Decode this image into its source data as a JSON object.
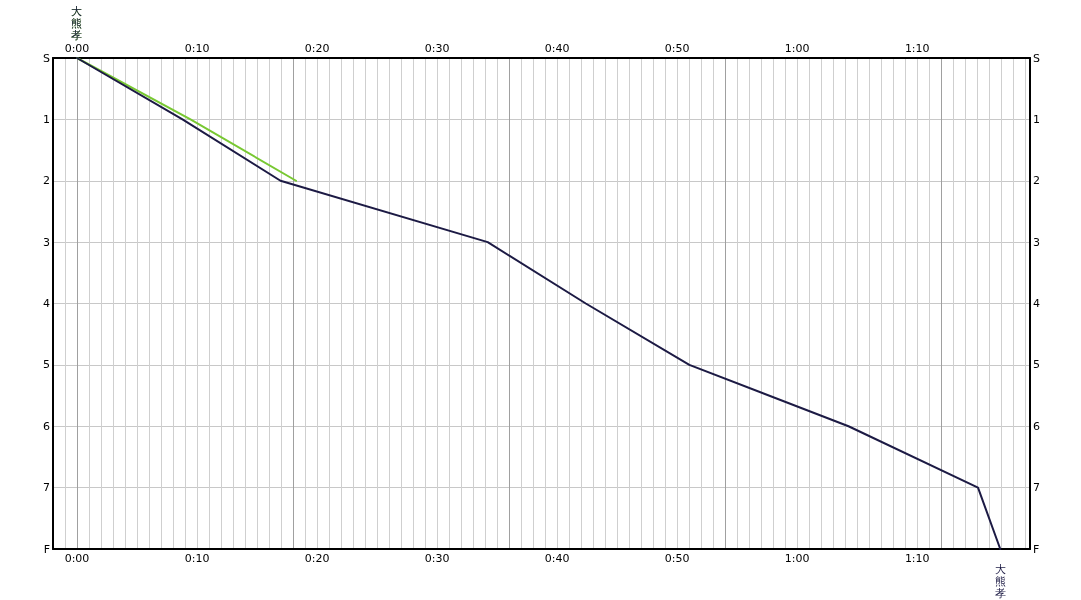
{
  "chart_data": {
    "type": "line",
    "xlim": [
      -0.0333,
      1.3233
    ],
    "xticks": [
      {
        "value": 0,
        "label": "0:00"
      },
      {
        "value": 0.1667,
        "label": "0:10"
      },
      {
        "value": 0.3333,
        "label": "0:20"
      },
      {
        "value": 0.5,
        "label": "0:30"
      },
      {
        "value": 0.6667,
        "label": "0:40"
      },
      {
        "value": 0.8333,
        "label": "0:50"
      },
      {
        "value": 1,
        "label": "1:00"
      },
      {
        "value": 1.1667,
        "label": "1:10"
      }
    ],
    "x2lim": [
      -0.0333,
      1.3233
    ],
    "x2ticks": [
      {
        "value": 0,
        "label": "0:00"
      },
      {
        "value": 0.1667,
        "label": "0:10"
      },
      {
        "value": 0.3333,
        "label": "0:20"
      },
      {
        "value": 0.5,
        "label": "0:30"
      },
      {
        "value": 0.6667,
        "label": "0:40"
      },
      {
        "value": 0.8333,
        "label": "0:50"
      },
      {
        "value": 1,
        "label": "1:00"
      },
      {
        "value": 1.1667,
        "label": "1:10"
      }
    ],
    "ylim": [
      8,
      0
    ],
    "yticks": [
      {
        "value": 0,
        "label": "S"
      },
      1,
      2,
      3,
      4,
      5,
      6,
      7,
      {
        "value": 8,
        "label": "F"
      }
    ],
    "y2lim": [
      8,
      0
    ],
    "y2ticks": [
      {
        "value": 0,
        "label": "S"
      },
      1,
      2,
      3,
      4,
      5,
      6,
      7,
      {
        "value": 8,
        "label": "F"
      }
    ],
    "grid": true,
    "legend": false,
    "marker": "none",
    "series": [
      {
        "name": "大熊孝",
        "color": "#1c1a44",
        "x": [
          0,
          0.1465,
          0.2826,
          0.5703,
          0.7065,
          0.8503,
          1.0713,
          1.2511,
          1.282
        ],
        "values": [
          0,
          1,
          2,
          3,
          4,
          5,
          6,
          7,
          8
        ]
      },
      {
        "name": "大熊孝",
        "color": "#78c832",
        "x": [
          0,
          0.1576,
          0.3042
        ],
        "values": [
          0,
          1,
          2
        ]
      }
    ]
  }
}
